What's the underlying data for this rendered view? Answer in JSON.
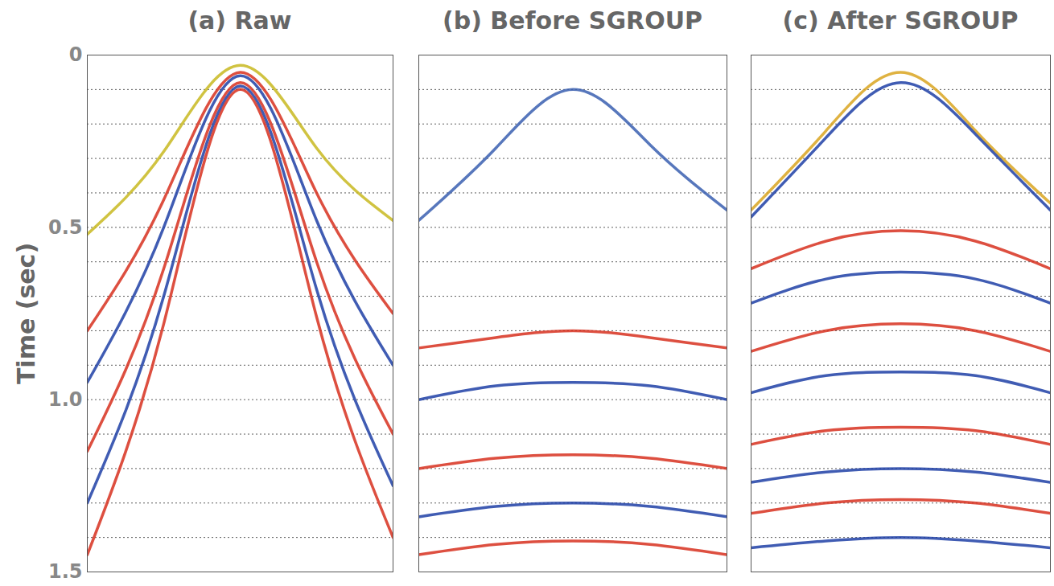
{
  "chart_data": [
    {
      "type": "line",
      "title": "(a) Raw",
      "ylabel": "Time (sec)",
      "xlim": [
        -1,
        1
      ],
      "ylim": [
        0,
        1.5
      ],
      "yticks": [
        0,
        0.5,
        {
          "value": 1,
          "label": "1.0"
        },
        1.5
      ],
      "grid": true,
      "grid_lines": [
        0.1,
        0.2,
        0.3,
        0.4,
        0.5,
        0.6,
        0.7,
        0.8,
        0.9,
        1.0,
        1.1,
        1.2,
        1.3,
        1.4
      ],
      "tick_labels": "y",
      "x": [
        -1,
        -0.5,
        0,
        0.5,
        1
      ],
      "series": [
        {
          "color": "#c8b820",
          "values": [
            0.52,
            0.28,
            0.03,
            0.27,
            0.48
          ]
        },
        {
          "color": "#d7301f",
          "values": [
            0.8,
            0.42,
            0.05,
            0.4,
            0.75
          ]
        },
        {
          "color": "#1f3fa6",
          "values": [
            0.95,
            0.5,
            0.06,
            0.48,
            0.9
          ]
        },
        {
          "color": "#d7301f",
          "values": [
            1.15,
            0.62,
            0.08,
            0.6,
            1.1
          ]
        },
        {
          "color": "#1f3fa6",
          "values": [
            1.3,
            0.7,
            0.09,
            0.68,
            1.25
          ]
        },
        {
          "color": "#d7301f",
          "values": [
            1.45,
            0.78,
            0.1,
            0.76,
            1.4
          ]
        }
      ]
    },
    {
      "type": "line",
      "title": "(b) Before SGROUP",
      "xlim": [
        -1,
        1
      ],
      "ylim": [
        0,
        1.5
      ],
      "grid": true,
      "grid_lines": [
        0.1,
        0.2,
        0.3,
        0.4,
        0.5,
        0.6,
        0.7,
        0.8,
        0.9,
        1.0,
        1.1,
        1.2,
        1.3,
        1.4
      ],
      "tick_labels": false,
      "x": [
        -1,
        -0.5,
        0,
        0.5,
        1
      ],
      "series": [
        {
          "color": "#3a5fb0",
          "values": [
            0.48,
            0.27,
            0.1,
            0.26,
            0.45
          ]
        },
        {
          "color": "#d7301f",
          "values": [
            0.85,
            0.82,
            0.8,
            0.82,
            0.85
          ]
        },
        {
          "color": "#1f3fa6",
          "values": [
            1.0,
            0.96,
            0.95,
            0.96,
            1.0
          ]
        },
        {
          "color": "#d7301f",
          "values": [
            1.2,
            1.17,
            1.16,
            1.17,
            1.2
          ]
        },
        {
          "color": "#1f3fa6",
          "values": [
            1.34,
            1.31,
            1.3,
            1.31,
            1.34
          ]
        },
        {
          "color": "#d7301f",
          "values": [
            1.45,
            1.42,
            1.41,
            1.42,
            1.45
          ]
        }
      ]
    },
    {
      "type": "line",
      "title": "(c) After SGROUP",
      "xlim": [
        -1,
        1
      ],
      "ylim": [
        0,
        1.5
      ],
      "grid": true,
      "grid_lines": [
        0.1,
        0.2,
        0.3,
        0.4,
        0.5,
        0.6,
        0.7,
        0.8,
        0.9,
        1.0,
        1.1,
        1.2,
        1.3,
        1.4
      ],
      "tick_labels": false,
      "x": [
        -1,
        -0.5,
        0,
        0.5,
        1
      ],
      "series": [
        {
          "color": "#d9a520",
          "values": [
            0.45,
            0.22,
            0.05,
            0.22,
            0.43
          ]
        },
        {
          "color": "#1f3fa6",
          "values": [
            0.47,
            0.24,
            0.08,
            0.23,
            0.45
          ]
        },
        {
          "color": "#d7301f",
          "values": [
            0.62,
            0.54,
            0.51,
            0.54,
            0.62
          ]
        },
        {
          "color": "#1f3fa6",
          "values": [
            0.72,
            0.65,
            0.63,
            0.65,
            0.72
          ]
        },
        {
          "color": "#d7301f",
          "values": [
            0.86,
            0.8,
            0.78,
            0.8,
            0.86
          ]
        },
        {
          "color": "#1f3fa6",
          "values": [
            0.98,
            0.93,
            0.92,
            0.93,
            0.98
          ]
        },
        {
          "color": "#d7301f",
          "values": [
            1.13,
            1.09,
            1.08,
            1.09,
            1.13
          ]
        },
        {
          "color": "#1f3fa6",
          "values": [
            1.24,
            1.21,
            1.2,
            1.21,
            1.24
          ]
        },
        {
          "color": "#d7301f",
          "values": [
            1.33,
            1.3,
            1.29,
            1.3,
            1.33
          ]
        },
        {
          "color": "#1f3fa6",
          "values": [
            1.43,
            1.41,
            1.4,
            1.41,
            1.43
          ]
        }
      ]
    }
  ]
}
